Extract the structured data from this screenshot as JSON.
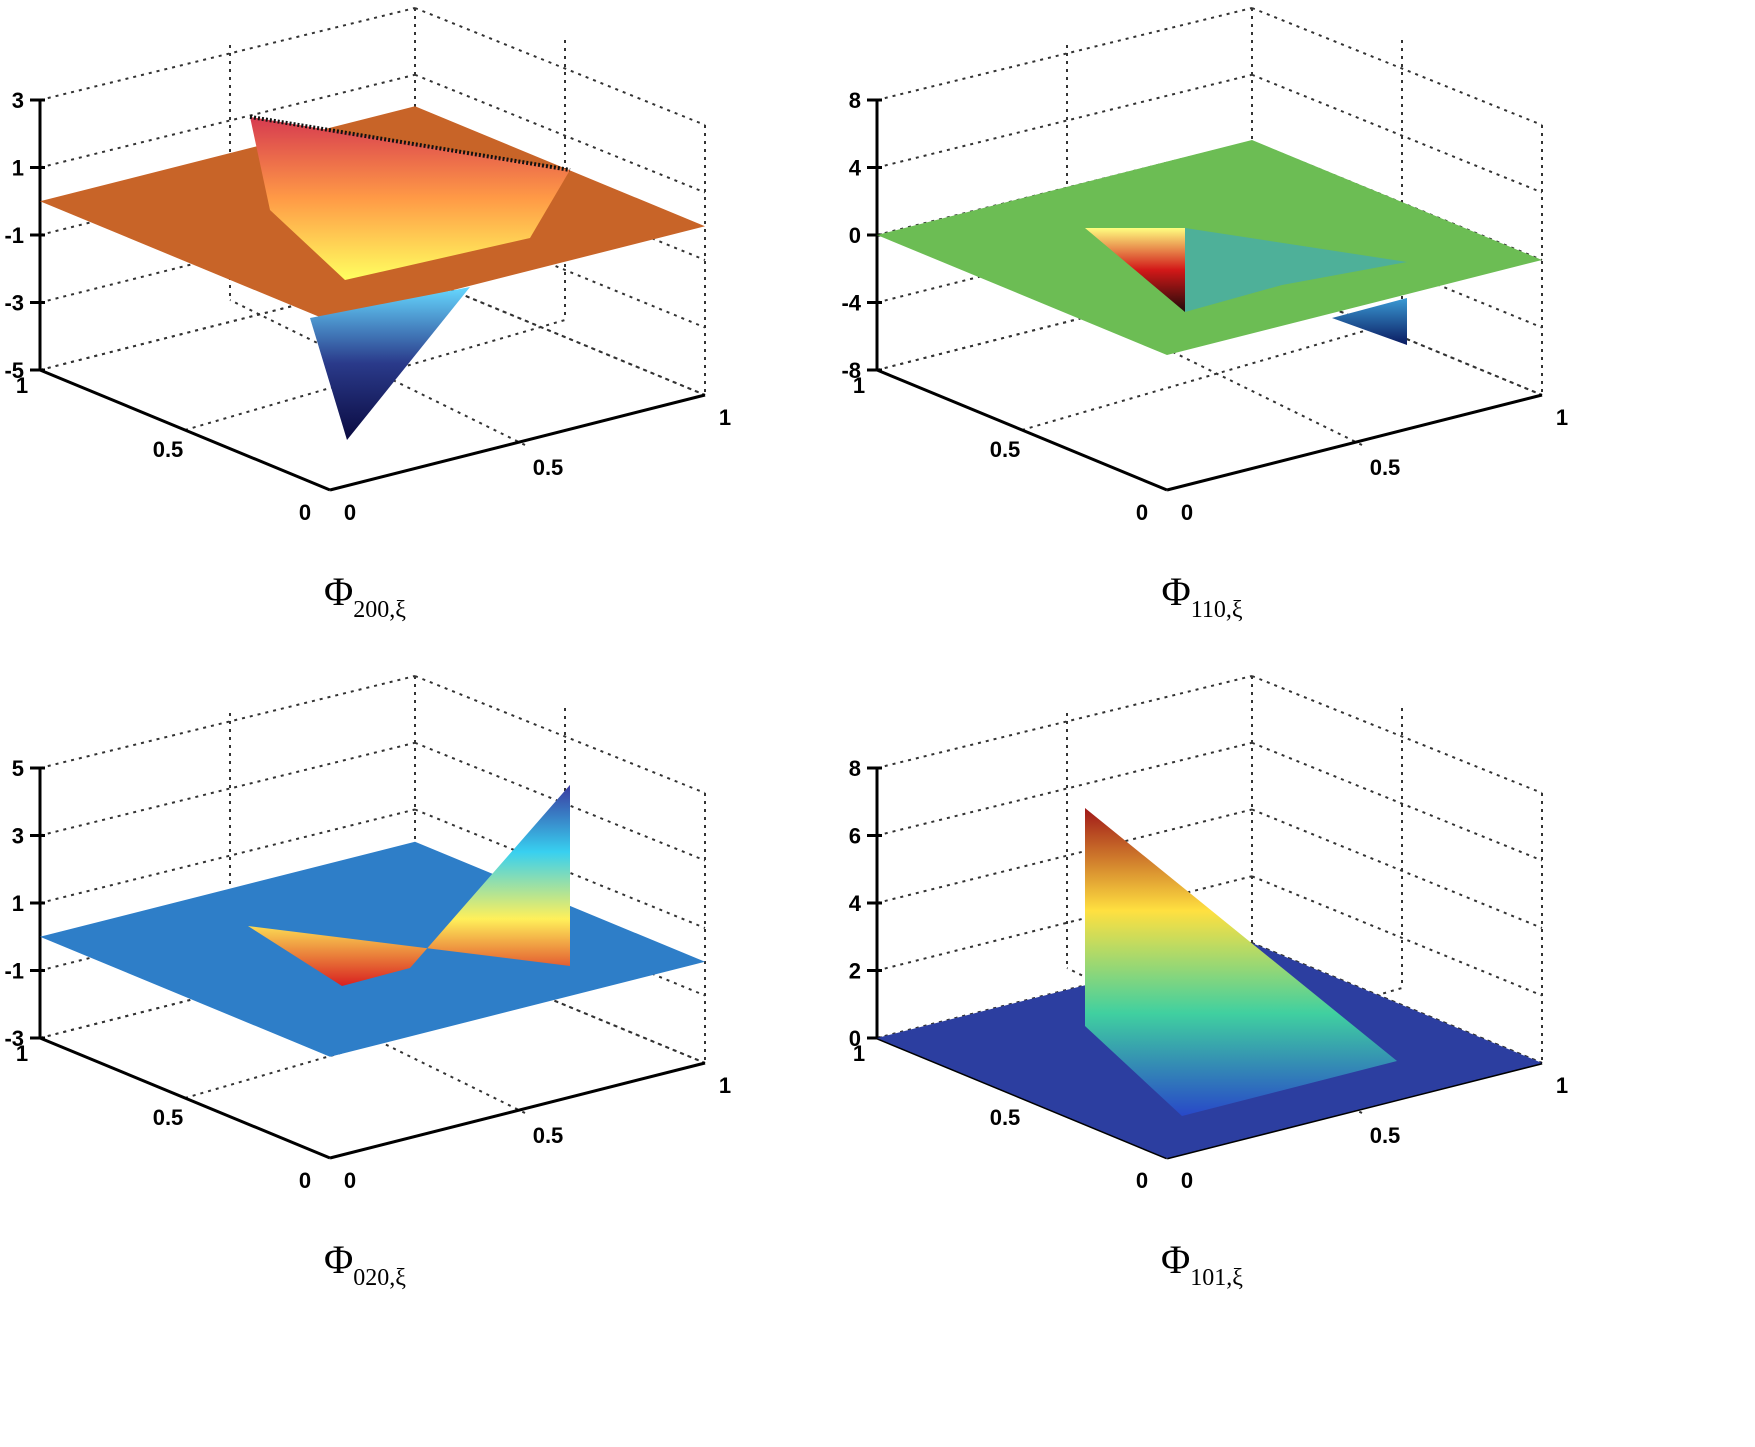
{
  "chart_data": [
    {
      "type": "surface",
      "caption": "Φ",
      "caption_subscript": "200,ξ",
      "zticks": [
        "3",
        "1",
        "-1",
        "-3",
        "-5"
      ],
      "zlim": [
        -5,
        3
      ],
      "xticks": [
        "0",
        "0.5",
        "1"
      ],
      "yticks": [
        "0",
        "0.5",
        "1"
      ],
      "grid": true,
      "plane_color": "#c86428",
      "features": [
        {
          "kind": "raised-triangle",
          "peak_z": 2.5,
          "gradient": [
            "#d63a50",
            "#ff9a46",
            "#ffff60"
          ]
        },
        {
          "kind": "spike",
          "min_z": -5,
          "gradient": [
            "#66d8ff",
            "#2a3a8a",
            "#0a0a40"
          ]
        }
      ]
    },
    {
      "type": "surface",
      "caption": "Φ",
      "caption_subscript": "110,ξ",
      "zticks": [
        "8",
        "4",
        "0",
        "-4",
        "-8"
      ],
      "zlim": [
        -10,
        10
      ],
      "xticks": [
        "0",
        "0.5",
        "1"
      ],
      "yticks": [
        "0",
        "0.5",
        "1"
      ],
      "grid": true,
      "plane_color": "#6cbd54",
      "features": [
        {
          "kind": "depression",
          "min_z": -8,
          "gradient": [
            "#ffff80",
            "#d21818",
            "#1e0a0a"
          ]
        },
        {
          "kind": "spike",
          "min_z": -8,
          "gradient": [
            "#3a9ad4",
            "#0a1a60"
          ]
        }
      ]
    },
    {
      "type": "surface",
      "caption": "Φ",
      "caption_subscript": "020,ξ",
      "zticks": [
        "5",
        "3",
        "1",
        "-1",
        "-3"
      ],
      "zlim": [
        -3,
        5
      ],
      "xticks": [
        "0",
        "0.5",
        "1"
      ],
      "yticks": [
        "0",
        "0.5",
        "1"
      ],
      "grid": true,
      "plane_color": "#2e7ec8",
      "features": [
        {
          "kind": "raised-triangle",
          "peak_z": 4.5,
          "gradient": [
            "#3a3aa0",
            "#38d0f0",
            "#fff05a",
            "#d82020"
          ]
        },
        {
          "kind": "spike",
          "min_z": -3,
          "gradient": [
            "#303080"
          ]
        }
      ]
    },
    {
      "type": "surface",
      "caption": "Φ",
      "caption_subscript": "101,ξ",
      "zticks": [
        "8",
        "6",
        "4",
        "2",
        "0"
      ],
      "zlim": [
        0,
        8
      ],
      "xticks": [
        "0",
        "0.5",
        "1"
      ],
      "yticks": [
        "0",
        "0.5",
        "1"
      ],
      "grid": true,
      "plane_color": "#2c3ea0",
      "features": [
        {
          "kind": "raised-triangle",
          "peak_z": 7,
          "gradient": [
            "#a01818",
            "#ffe040",
            "#40d0a0",
            "#2848c8"
          ]
        }
      ]
    }
  ]
}
